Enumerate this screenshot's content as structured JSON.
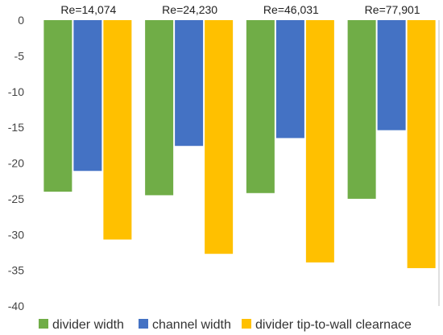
{
  "chart_data": {
    "type": "bar",
    "categories": [
      "Re=14,074",
      "Re=24,230",
      "Re=46,031",
      "Re=77,901"
    ],
    "series": [
      {
        "name": "divider width",
        "color": "#70ad47",
        "values": [
          -24.0,
          -24.5,
          -24.2,
          -25.0
        ]
      },
      {
        "name": "channel width",
        "color": "#4472c4",
        "values": [
          -21.1,
          -17.6,
          -16.5,
          -15.4
        ]
      },
      {
        "name": "divider tip-to-wall clearnace",
        "color": "#ffc000",
        "values": [
          -30.7,
          -32.7,
          -33.9,
          -34.7
        ]
      }
    ],
    "ylim": [
      -40,
      0
    ],
    "yticks": [
      0,
      -5,
      -10,
      -15,
      -20,
      -25,
      -30,
      -35,
      -40
    ],
    "category_labels_position": "top",
    "legend_position": "bottom",
    "grid": false
  }
}
